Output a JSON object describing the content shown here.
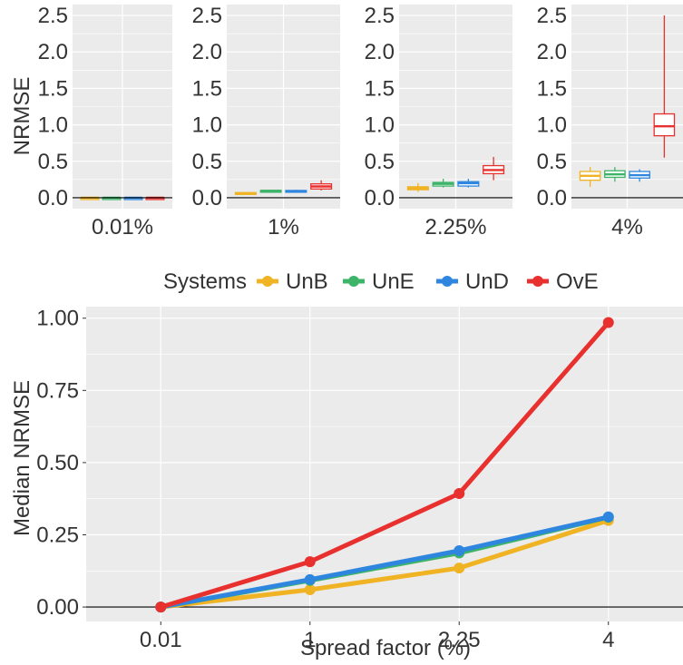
{
  "colors": {
    "UnB": "#F0B323",
    "UnE": "#3DB469",
    "UnD": "#2E86DE",
    "OvE": "#E8302F",
    "panel": "#EBEBEB",
    "grid": "#FFFFFF",
    "text": "#333333"
  },
  "chart_data": [
    {
      "type": "box",
      "ylabel": "NRMSE",
      "ylim": [
        -0.15,
        2.65
      ],
      "yticks": [
        "0.0",
        "0.5",
        "1.0",
        "1.5",
        "2.0",
        "2.5"
      ],
      "ytick_values": [
        0,
        0.5,
        1.0,
        1.5,
        2.0,
        2.5
      ],
      "series_order": [
        "UnB",
        "UnE",
        "UnD",
        "OvE"
      ],
      "facets": [
        {
          "label": "0.01%",
          "boxes": [
            {
              "series": "UnB",
              "min": 0,
              "q1": 0,
              "median": 0,
              "q3": 0,
              "max": 0
            },
            {
              "series": "UnE",
              "min": 0,
              "q1": 0,
              "median": 0,
              "q3": 0,
              "max": 0
            },
            {
              "series": "UnD",
              "min": 0,
              "q1": 0,
              "median": 0,
              "q3": 0,
              "max": 0
            },
            {
              "series": "OvE",
              "min": 0,
              "q1": 0,
              "median": 0,
              "q3": 0,
              "max": 0
            }
          ]
        },
        {
          "label": "1%",
          "boxes": [
            {
              "series": "UnB",
              "min": 0.05,
              "q1": 0.055,
              "median": 0.06,
              "q3": 0.07,
              "max": 0.075
            },
            {
              "series": "UnE",
              "min": 0.08,
              "q1": 0.085,
              "median": 0.095,
              "q3": 0.1,
              "max": 0.11
            },
            {
              "series": "UnD",
              "min": 0.08,
              "q1": 0.085,
              "median": 0.09,
              "q3": 0.1,
              "max": 0.11
            },
            {
              "series": "OvE",
              "min": 0.1,
              "q1": 0.12,
              "median": 0.155,
              "q3": 0.19,
              "max": 0.24
            }
          ]
        },
        {
          "label": "2.25%",
          "boxes": [
            {
              "series": "UnB",
              "min": 0.08,
              "q1": 0.11,
              "median": 0.13,
              "q3": 0.15,
              "max": 0.2
            },
            {
              "series": "UnE",
              "min": 0.14,
              "q1": 0.16,
              "median": 0.19,
              "q3": 0.21,
              "max": 0.26
            },
            {
              "series": "UnD",
              "min": 0.14,
              "q1": 0.16,
              "median": 0.2,
              "q3": 0.22,
              "max": 0.26
            },
            {
              "series": "OvE",
              "min": 0.24,
              "q1": 0.33,
              "median": 0.38,
              "q3": 0.44,
              "max": 0.56
            }
          ]
        },
        {
          "label": "4%",
          "boxes": [
            {
              "series": "UnB",
              "min": 0.15,
              "q1": 0.24,
              "median": 0.3,
              "q3": 0.36,
              "max": 0.42
            },
            {
              "series": "UnE",
              "min": 0.22,
              "q1": 0.28,
              "median": 0.32,
              "q3": 0.37,
              "max": 0.42
            },
            {
              "series": "UnD",
              "min": 0.22,
              "q1": 0.27,
              "median": 0.31,
              "q3": 0.36,
              "max": 0.39
            },
            {
              "series": "OvE",
              "min": 0.55,
              "q1": 0.85,
              "median": 0.98,
              "q3": 1.15,
              "max": 2.5
            }
          ]
        }
      ]
    },
    {
      "type": "line",
      "xlabel": "Spread factor (%)",
      "ylabel": "Median NRMSE",
      "categories": [
        "0.01",
        "1",
        "2.25",
        "4"
      ],
      "ylim": [
        -0.05,
        1.04
      ],
      "yticks": [
        "0.00",
        "0.25",
        "0.50",
        "0.75",
        "1.00"
      ],
      "ytick_values": [
        0,
        0.25,
        0.5,
        0.75,
        1.0
      ],
      "legend": {
        "title": "Systems",
        "position": "top"
      },
      "series": [
        {
          "name": "UnB",
          "values": [
            0.0,
            0.06,
            0.135,
            0.3
          ]
        },
        {
          "name": "UnE",
          "values": [
            0.0,
            0.092,
            0.187,
            0.311
          ]
        },
        {
          "name": "UnD",
          "values": [
            0.0,
            0.095,
            0.195,
            0.312
          ]
        },
        {
          "name": "OvE",
          "values": [
            0.0,
            0.157,
            0.393,
            0.985
          ]
        }
      ]
    }
  ]
}
